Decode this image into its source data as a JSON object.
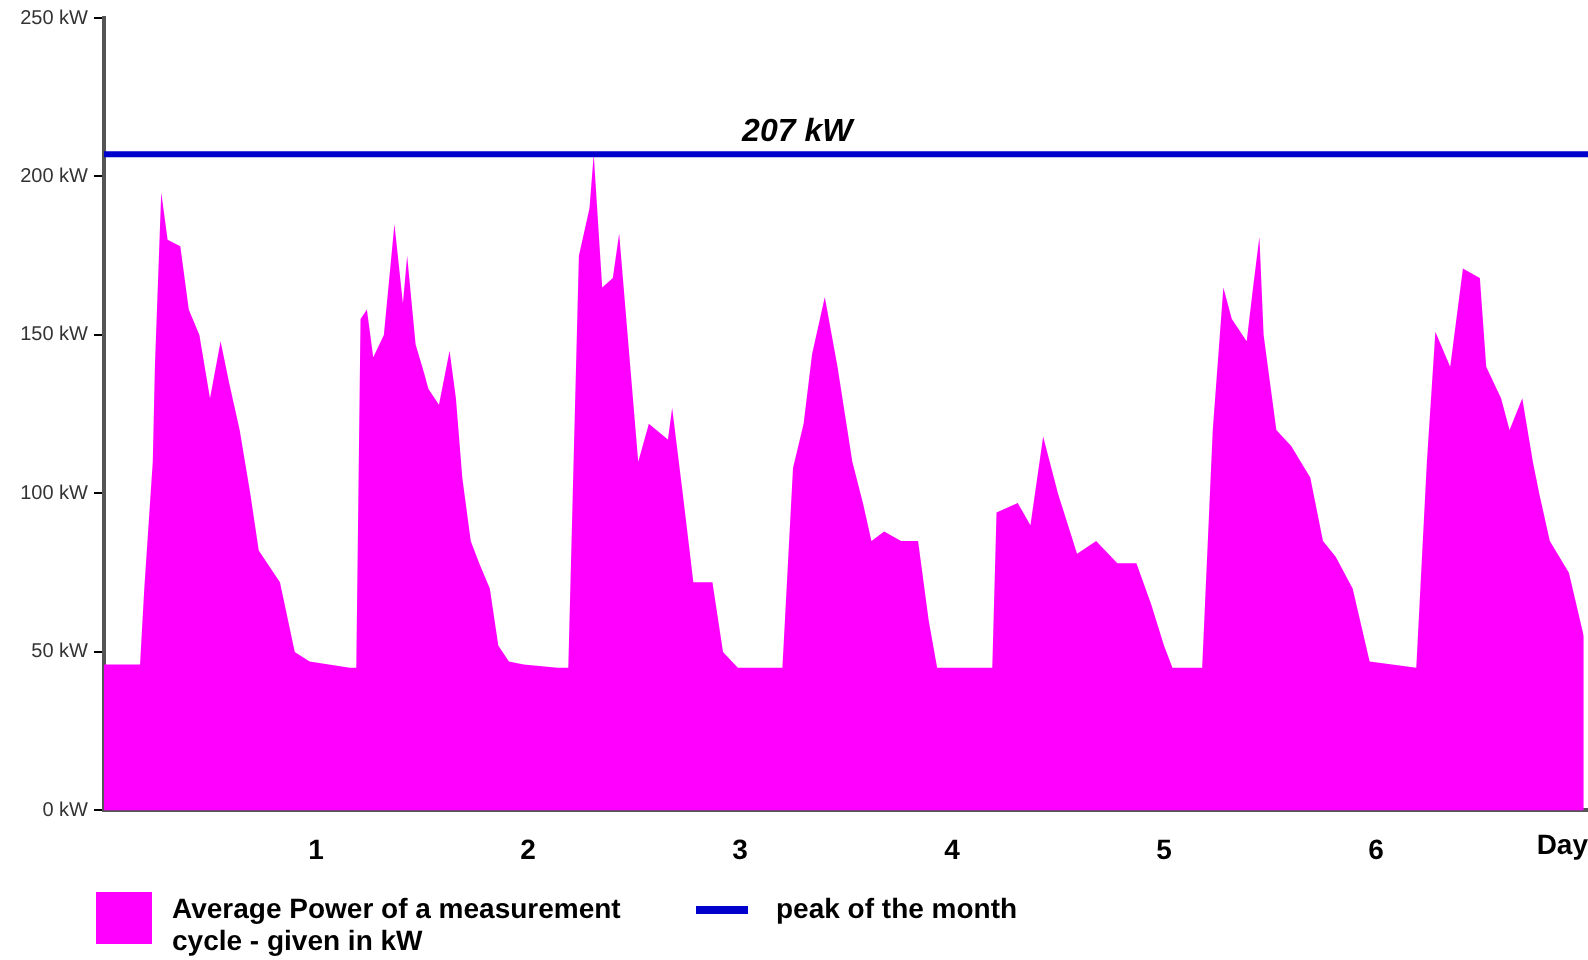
{
  "chart_data": {
    "type": "area",
    "xlabel": "Day",
    "xlim": [
      0,
      7
    ],
    "xticks": [
      1,
      2,
      3,
      4,
      5,
      6
    ],
    "ylim": [
      0,
      250
    ],
    "yticks": [
      {
        "value": 0,
        "label": "0 kW"
      },
      {
        "value": 50,
        "label": "50 kW"
      },
      {
        "value": 100,
        "label": "100 kW"
      },
      {
        "value": 150,
        "label": "150 kW"
      },
      {
        "value": 200,
        "label": "200 kW"
      },
      {
        "value": 250,
        "label": "250 kW"
      }
    ],
    "grid": false,
    "legend": "bottom left",
    "series": [
      {
        "name": "Average Power of a measurement cycle - given in kW",
        "color": "#ff00ff",
        "x": [
          0,
          0.17,
          0.19,
          0.23,
          0.24,
          0.27,
          0.3,
          0.36,
          0.4,
          0.45,
          0.5,
          0.55,
          0.59,
          0.64,
          0.69,
          0.73,
          0.83,
          0.9,
          0.97,
          1.16,
          1.19,
          1.21,
          1.24,
          1.27,
          1.32,
          1.37,
          1.41,
          1.43,
          1.47,
          1.51,
          1.53,
          1.58,
          1.63,
          1.66,
          1.69,
          1.73,
          1.77,
          1.82,
          1.86,
          1.91,
          1.98,
          2.14,
          2.19,
          2.24,
          2.29,
          2.31,
          2.35,
          2.4,
          2.43,
          2.47,
          2.52,
          2.57,
          2.66,
          2.68,
          2.73,
          2.78,
          2.87,
          2.92,
          2.99,
          3.18,
          3.2,
          3.25,
          3.3,
          3.34,
          3.4,
          3.46,
          3.53,
          3.58,
          3.62,
          3.68,
          3.76,
          3.84,
          3.89,
          3.93,
          4.19,
          4.21,
          4.31,
          4.37,
          4.43,
          4.5,
          4.59,
          4.68,
          4.78,
          4.87,
          4.94,
          5,
          5.04,
          5.18,
          5.23,
          5.28,
          5.32,
          5.39,
          5.42,
          5.45,
          5.47,
          5.53,
          5.6,
          5.69,
          5.75,
          5.81,
          5.89,
          5.97,
          6.19,
          6.24,
          6.28,
          6.35,
          6.41,
          6.49,
          6.52,
          6.59,
          6.63,
          6.69,
          6.74,
          6.77,
          6.82,
          6.91,
          6.98
        ],
        "values": [
          46,
          46,
          70,
          110,
          140,
          195,
          180,
          178,
          158,
          150,
          130,
          148,
          135,
          120,
          100,
          82,
          72,
          50,
          47,
          45,
          45,
          155,
          158,
          143,
          150,
          185,
          160,
          175,
          147,
          138,
          133,
          128,
          145,
          130,
          105,
          85,
          78,
          70,
          52,
          47,
          46,
          45,
          45,
          175,
          190,
          207,
          165,
          168,
          182,
          150,
          110,
          122,
          117,
          127,
          100,
          72,
          72,
          50,
          45,
          45,
          45,
          108,
          122,
          144,
          162,
          140,
          110,
          97,
          85,
          88,
          85,
          85,
          60,
          45,
          45,
          94,
          97,
          90,
          118,
          100,
          81,
          85,
          78,
          78,
          65,
          52,
          45,
          45,
          120,
          165,
          155,
          148,
          165,
          181,
          150,
          120,
          115,
          105,
          85,
          80,
          70,
          47,
          45,
          110,
          151,
          140,
          171,
          168,
          140,
          130,
          120,
          130,
          110,
          100,
          85,
          75,
          55
        ]
      }
    ],
    "ref_lines": [
      {
        "axis": "y",
        "value": 207,
        "label": "peak of the month",
        "color": "#0000cc"
      }
    ],
    "annotations": [
      {
        "text": "207 kW",
        "x": 3.27,
        "y": 207
      }
    ]
  }
}
